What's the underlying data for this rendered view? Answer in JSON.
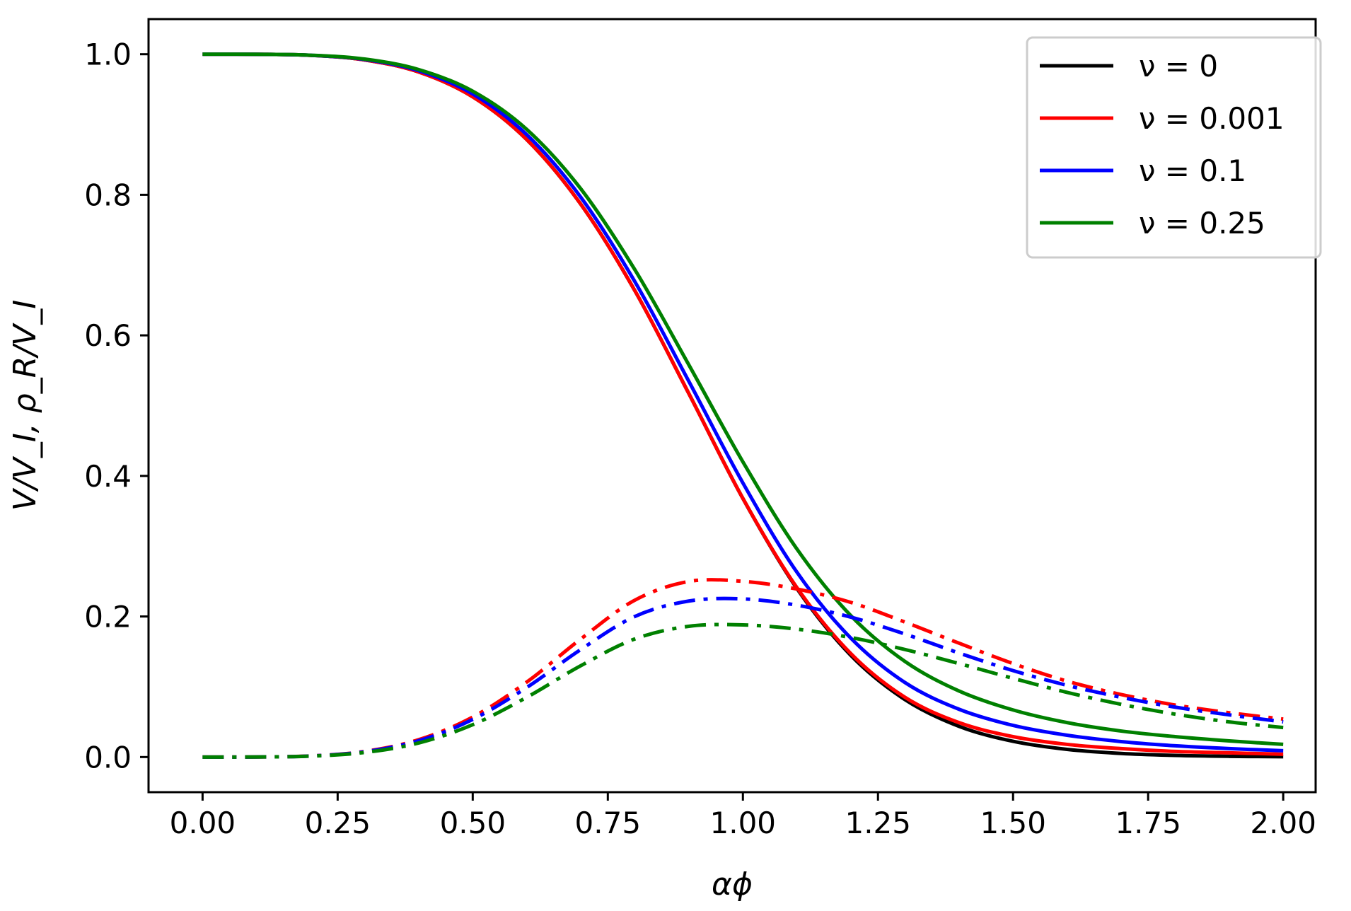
{
  "chart_data": {
    "type": "line",
    "title": "",
    "xlabel": "αϕ",
    "ylabel": "V/V_I, ρ_R/V_I",
    "xlim": [
      -0.1,
      2.06
    ],
    "ylim": [
      -0.05,
      1.05
    ],
    "x_ticks": [
      "0.00",
      "0.25",
      "0.50",
      "0.75",
      "1.00",
      "1.25",
      "1.50",
      "1.75",
      "2.00"
    ],
    "y_ticks": [
      "0.0",
      "0.2",
      "0.4",
      "0.6",
      "0.8",
      "1.0"
    ],
    "grid": false,
    "legend_position": "top-right",
    "legend": [
      {
        "label": "ν = 0",
        "color": "#000000"
      },
      {
        "label": "ν = 0.001",
        "color": "#ff0000"
      },
      {
        "label": "ν = 0.1",
        "color": "#0000ff"
      },
      {
        "label": "ν = 0.25",
        "color": "#008000"
      }
    ],
    "x": [
      0.0,
      0.1,
      0.2,
      0.3,
      0.4,
      0.5,
      0.6,
      0.7,
      0.8,
      0.9,
      1.0,
      1.1,
      1.2,
      1.3,
      1.4,
      1.5,
      1.6,
      1.7,
      1.8,
      1.9,
      2.0
    ],
    "series": [
      {
        "name": "ν = 0",
        "color": "#000000",
        "dash": "solid",
        "values": [
          1.0,
          0.9999,
          0.9984,
          0.9919,
          0.9747,
          0.9394,
          0.8785,
          0.7866,
          0.6636,
          0.5171,
          0.3679,
          0.2398,
          0.1445,
          0.0817,
          0.0437,
          0.0224,
          0.0109,
          0.0051,
          0.0023,
          0.001,
          0.0004
        ]
      },
      {
        "name": "ν = 0.001",
        "color": "#ff0000",
        "dash": "solid",
        "values": [
          1.0,
          0.9999,
          0.9984,
          0.9919,
          0.9747,
          0.9394,
          0.8785,
          0.7866,
          0.6636,
          0.5171,
          0.368,
          0.241,
          0.147,
          0.085,
          0.049,
          0.029,
          0.018,
          0.012,
          0.008,
          0.006,
          0.004
        ]
      },
      {
        "name": "ν = 0.1",
        "color": "#0000ff",
        "dash": "solid",
        "values": [
          1.0,
          0.9999,
          0.9985,
          0.9925,
          0.9765,
          0.9435,
          0.8855,
          0.7965,
          0.6765,
          0.5345,
          0.39,
          0.263,
          0.169,
          0.106,
          0.068,
          0.045,
          0.031,
          0.022,
          0.016,
          0.012,
          0.009
        ]
      },
      {
        "name": "ν = 0.25",
        "color": "#008000",
        "dash": "solid",
        "values": [
          1.0,
          0.9999,
          0.9986,
          0.9931,
          0.9782,
          0.9474,
          0.893,
          0.8085,
          0.6935,
          0.558,
          0.42,
          0.296,
          0.201,
          0.136,
          0.094,
          0.067,
          0.049,
          0.037,
          0.029,
          0.023,
          0.018
        ]
      },
      {
        "name": "ρ_R/V_I, ν = 0.001",
        "color": "#ff0000",
        "dash": "dashdot",
        "values": [
          0.0,
          0.0001,
          0.0016,
          0.008,
          0.0247,
          0.0569,
          0.1067,
          0.168,
          0.2232,
          0.2498,
          0.25,
          0.239,
          0.22,
          0.192,
          0.162,
          0.133,
          0.108,
          0.089,
          0.074,
          0.063,
          0.054
        ]
      },
      {
        "name": "ρ_R/V_I, ν = 0.1",
        "color": "#0000ff",
        "dash": "dashdot",
        "values": [
          0.0,
          0.0001,
          0.0015,
          0.0075,
          0.0232,
          0.0535,
          0.099,
          0.153,
          0.2,
          0.222,
          0.225,
          0.216,
          0.199,
          0.175,
          0.148,
          0.123,
          0.102,
          0.085,
          0.071,
          0.06,
          0.05
        ]
      },
      {
        "name": "ρ_R/V_I, ν = 0.25",
        "color": "#008000",
        "dash": "dashdot",
        "values": [
          0.0,
          0.0001,
          0.0013,
          0.0065,
          0.02,
          0.046,
          0.085,
          0.13,
          0.168,
          0.186,
          0.188,
          0.182,
          0.17,
          0.153,
          0.133,
          0.112,
          0.092,
          0.075,
          0.061,
          0.05,
          0.042
        ]
      }
    ]
  }
}
